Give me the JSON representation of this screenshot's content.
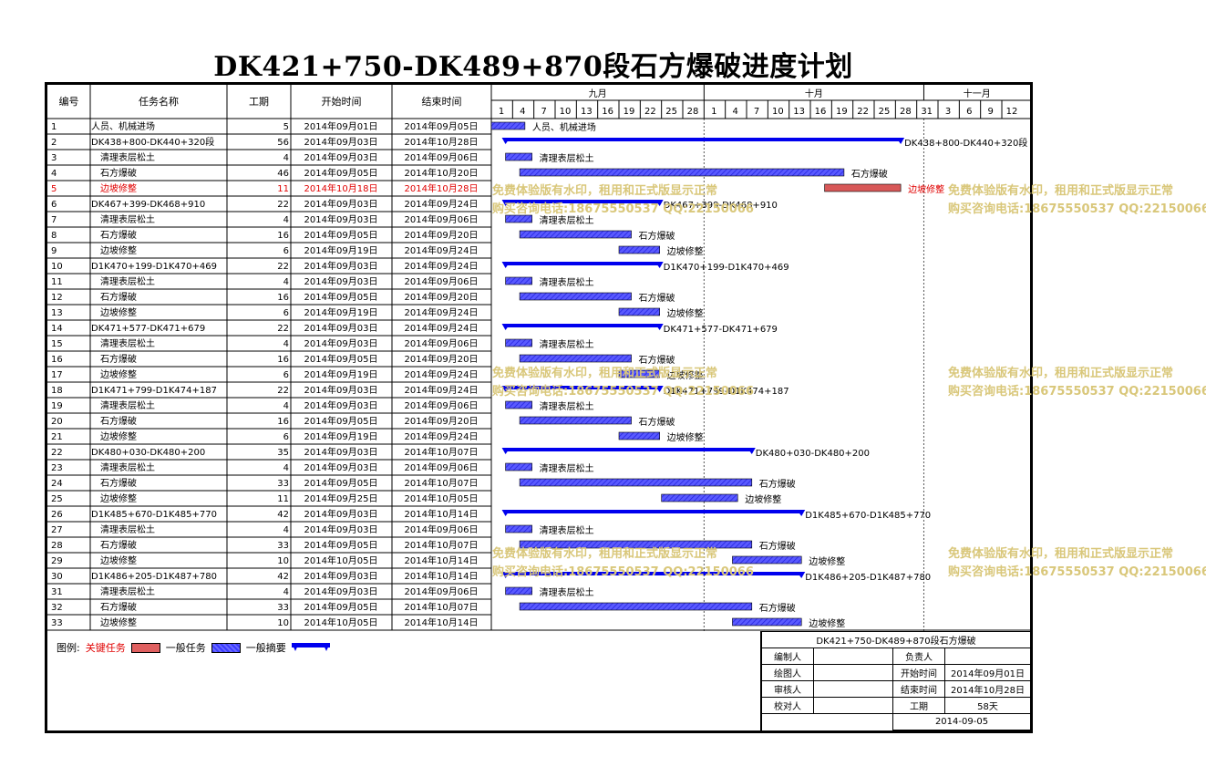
{
  "title": "DK421+750-DK489+870段石方爆破进度计划",
  "header": {
    "col_id": "编号",
    "col_name": "任务名称",
    "col_duration": "工期",
    "col_start": "开始时间",
    "col_end": "结束时间",
    "months": [
      "九月",
      "十月",
      "十一月"
    ],
    "days": [
      "1",
      "4",
      "7",
      "10",
      "13",
      "16",
      "19",
      "22",
      "25",
      "28",
      "1",
      "4",
      "7",
      "10",
      "13",
      "16",
      "19",
      "22",
      "25",
      "28",
      "31",
      "3",
      "6",
      "9",
      "12"
    ]
  },
  "chart_data": {
    "type": "gantt",
    "timeline_start": "2014-09-01",
    "tasks": [
      {
        "id": "1",
        "name": "人员、机械进场",
        "duration": "5",
        "start": "2014年09月01日",
        "end": "2014年09月05日",
        "s": "2014-09-01",
        "e": "2014-09-05",
        "kind": "normal",
        "label": "人员、机械进场",
        "indent": false
      },
      {
        "id": "2",
        "name": "DK438+800-DK440+320段",
        "duration": "56",
        "start": "2014年09月03日",
        "end": "2014年10月28日",
        "s": "2014-09-03",
        "e": "2014-10-28",
        "kind": "summary",
        "label": "DK438+800-DK440+320段",
        "indent": false
      },
      {
        "id": "3",
        "name": "清理表层松土",
        "duration": "4",
        "start": "2014年09月03日",
        "end": "2014年09月06日",
        "s": "2014-09-03",
        "e": "2014-09-06",
        "kind": "normal",
        "label": "清理表层松土",
        "indent": true
      },
      {
        "id": "4",
        "name": "石方爆破",
        "duration": "46",
        "start": "2014年09月05日",
        "end": "2014年10月20日",
        "s": "2014-09-05",
        "e": "2014-10-20",
        "kind": "normal",
        "label": "石方爆破",
        "indent": true
      },
      {
        "id": "5",
        "name": "边坡修整",
        "duration": "11",
        "start": "2014年10月18日",
        "end": "2014年10月28日",
        "s": "2014-10-18",
        "e": "2014-10-28",
        "kind": "critical",
        "label": "边坡修整",
        "indent": true
      },
      {
        "id": "6",
        "name": "DK467+399-DK468+910",
        "duration": "22",
        "start": "2014年09月03日",
        "end": "2014年09月24日",
        "s": "2014-09-03",
        "e": "2014-09-24",
        "kind": "summary",
        "label": "DK467+399-DK468+910",
        "indent": false
      },
      {
        "id": "7",
        "name": "清理表层松土",
        "duration": "4",
        "start": "2014年09月03日",
        "end": "2014年09月06日",
        "s": "2014-09-03",
        "e": "2014-09-06",
        "kind": "normal",
        "label": "清理表层松土",
        "indent": true
      },
      {
        "id": "8",
        "name": "石方爆破",
        "duration": "16",
        "start": "2014年09月05日",
        "end": "2014年09月20日",
        "s": "2014-09-05",
        "e": "2014-09-20",
        "kind": "normal",
        "label": "石方爆破",
        "indent": true
      },
      {
        "id": "9",
        "name": "边坡修整",
        "duration": "6",
        "start": "2014年09月19日",
        "end": "2014年09月24日",
        "s": "2014-09-19",
        "e": "2014-09-24",
        "kind": "normal",
        "label": "边坡修整",
        "indent": true
      },
      {
        "id": "10",
        "name": "D1K470+199-D1K470+469",
        "duration": "22",
        "start": "2014年09月03日",
        "end": "2014年09月24日",
        "s": "2014-09-03",
        "e": "2014-09-24",
        "kind": "summary",
        "label": "D1K470+199-D1K470+469",
        "indent": false
      },
      {
        "id": "11",
        "name": "清理表层松土",
        "duration": "4",
        "start": "2014年09月03日",
        "end": "2014年09月06日",
        "s": "2014-09-03",
        "e": "2014-09-06",
        "kind": "normal",
        "label": "清理表层松土",
        "indent": true
      },
      {
        "id": "12",
        "name": "石方爆破",
        "duration": "16",
        "start": "2014年09月05日",
        "end": "2014年09月20日",
        "s": "2014-09-05",
        "e": "2014-09-20",
        "kind": "normal",
        "label": "石方爆破",
        "indent": true
      },
      {
        "id": "13",
        "name": "边坡修整",
        "duration": "6",
        "start": "2014年09月19日",
        "end": "2014年09月24日",
        "s": "2014-09-19",
        "e": "2014-09-24",
        "kind": "normal",
        "label": "边坡修整",
        "indent": true
      },
      {
        "id": "14",
        "name": "DK471+577-DK471+679",
        "duration": "22",
        "start": "2014年09月03日",
        "end": "2014年09月24日",
        "s": "2014-09-03",
        "e": "2014-09-24",
        "kind": "summary",
        "label": "DK471+577-DK471+679",
        "indent": false
      },
      {
        "id": "15",
        "name": "清理表层松土",
        "duration": "4",
        "start": "2014年09月03日",
        "end": "2014年09月06日",
        "s": "2014-09-03",
        "e": "2014-09-06",
        "kind": "normal",
        "label": "清理表层松土",
        "indent": true
      },
      {
        "id": "16",
        "name": "石方爆破",
        "duration": "16",
        "start": "2014年09月05日",
        "end": "2014年09月20日",
        "s": "2014-09-05",
        "e": "2014-09-20",
        "kind": "normal",
        "label": "石方爆破",
        "indent": true
      },
      {
        "id": "17",
        "name": "边坡修整",
        "duration": "6",
        "start": "2014年09月19日",
        "end": "2014年09月24日",
        "s": "2014-09-19",
        "e": "2014-09-24",
        "kind": "normal",
        "label": "边坡修整",
        "indent": true
      },
      {
        "id": "18",
        "name": "D1K471+799-D1K474+187",
        "duration": "22",
        "start": "2014年09月03日",
        "end": "2014年09月24日",
        "s": "2014-09-03",
        "e": "2014-09-24",
        "kind": "summary",
        "label": "D1K471+799-D1K474+187",
        "indent": false
      },
      {
        "id": "19",
        "name": "清理表层松土",
        "duration": "4",
        "start": "2014年09月03日",
        "end": "2014年09月06日",
        "s": "2014-09-03",
        "e": "2014-09-06",
        "kind": "normal",
        "label": "清理表层松土",
        "indent": true
      },
      {
        "id": "20",
        "name": "石方爆破",
        "duration": "16",
        "start": "2014年09月05日",
        "end": "2014年09月20日",
        "s": "2014-09-05",
        "e": "2014-09-20",
        "kind": "normal",
        "label": "石方爆破",
        "indent": true
      },
      {
        "id": "21",
        "name": "边坡修整",
        "duration": "6",
        "start": "2014年09月19日",
        "end": "2014年09月24日",
        "s": "2014-09-19",
        "e": "2014-09-24",
        "kind": "normal",
        "label": "边坡修整",
        "indent": true
      },
      {
        "id": "22",
        "name": "DK480+030-DK480+200",
        "duration": "35",
        "start": "2014年09月03日",
        "end": "2014年10月07日",
        "s": "2014-09-03",
        "e": "2014-10-07",
        "kind": "summary",
        "label": "DK480+030-DK480+200",
        "indent": false
      },
      {
        "id": "23",
        "name": "清理表层松土",
        "duration": "4",
        "start": "2014年09月03日",
        "end": "2014年09月06日",
        "s": "2014-09-03",
        "e": "2014-09-06",
        "kind": "normal",
        "label": "清理表层松土",
        "indent": true
      },
      {
        "id": "24",
        "name": "石方爆破",
        "duration": "33",
        "start": "2014年09月05日",
        "end": "2014年10月07日",
        "s": "2014-09-05",
        "e": "2014-10-07",
        "kind": "normal",
        "label": "石方爆破",
        "indent": true
      },
      {
        "id": "25",
        "name": "边坡修整",
        "duration": "11",
        "start": "2014年09月25日",
        "end": "2014年10月05日",
        "s": "2014-09-25",
        "e": "2014-10-05",
        "kind": "normal",
        "label": "边坡修整",
        "indent": true
      },
      {
        "id": "26",
        "name": "D1K485+670-D1K485+770",
        "duration": "42",
        "start": "2014年09月03日",
        "end": "2014年10月14日",
        "s": "2014-09-03",
        "e": "2014-10-14",
        "kind": "summary",
        "label": "D1K485+670-D1K485+770",
        "indent": false
      },
      {
        "id": "27",
        "name": "清理表层松土",
        "duration": "4",
        "start": "2014年09月03日",
        "end": "2014年09月06日",
        "s": "2014-09-03",
        "e": "2014-09-06",
        "kind": "normal",
        "label": "清理表层松土",
        "indent": true
      },
      {
        "id": "28",
        "name": "石方爆破",
        "duration": "33",
        "start": "2014年09月05日",
        "end": "2014年10月07日",
        "s": "2014-09-05",
        "e": "2014-10-07",
        "kind": "normal",
        "label": "石方爆破",
        "indent": true
      },
      {
        "id": "29",
        "name": "边坡修整",
        "duration": "10",
        "start": "2014年10月05日",
        "end": "2014年10月14日",
        "s": "2014-10-05",
        "e": "2014-10-14",
        "kind": "normal",
        "label": "边坡修整",
        "indent": true
      },
      {
        "id": "30",
        "name": "D1K486+205-D1K487+780",
        "duration": "42",
        "start": "2014年09月03日",
        "end": "2014年10月14日",
        "s": "2014-09-03",
        "e": "2014-10-14",
        "kind": "summary",
        "label": "D1K486+205-D1K487+780",
        "indent": false
      },
      {
        "id": "31",
        "name": "清理表层松土",
        "duration": "4",
        "start": "2014年09月03日",
        "end": "2014年09月06日",
        "s": "2014-09-03",
        "e": "2014-09-06",
        "kind": "normal",
        "label": "清理表层松土",
        "indent": true
      },
      {
        "id": "32",
        "name": "石方爆破",
        "duration": "33",
        "start": "2014年09月05日",
        "end": "2014年10月07日",
        "s": "2014-09-05",
        "e": "2014-10-07",
        "kind": "normal",
        "label": "石方爆破",
        "indent": true
      },
      {
        "id": "33",
        "name": "边坡修整",
        "duration": "10",
        "start": "2014年10月05日",
        "end": "2014年10月14日",
        "s": "2014-10-05",
        "e": "2014-10-14",
        "kind": "normal",
        "label": "边坡修整",
        "indent": true
      }
    ]
  },
  "legend": {
    "label": "图例:",
    "critical": "关键任务",
    "normal": "一般任务",
    "summary": "一般摘要"
  },
  "signoff": {
    "project": "DK421+750-DK489+870段石方爆破",
    "editor_label": "编制人",
    "owner_label": "负责人",
    "drawer_label": "绘图人",
    "start_label": "开始时间",
    "start_value": "2014年09月01日",
    "reviewer_label": "审核人",
    "end_label": "结束时间",
    "end_value": "2014年10月28日",
    "checker_label": "校对人",
    "duration_label": "工期",
    "duration_value": "58天",
    "date": "2014-09-05"
  },
  "watermark": {
    "line1": "免费体验版有水印，租用和正式版显示正常",
    "line2": "购买咨询电话:18675550537 QQ:22150066"
  },
  "colors": {
    "summary": "#0000ee",
    "normal_bar": "#4848ff",
    "critical_bar": "#d85858",
    "critical_text": "#e00000",
    "watermark": "#d9c77a"
  }
}
